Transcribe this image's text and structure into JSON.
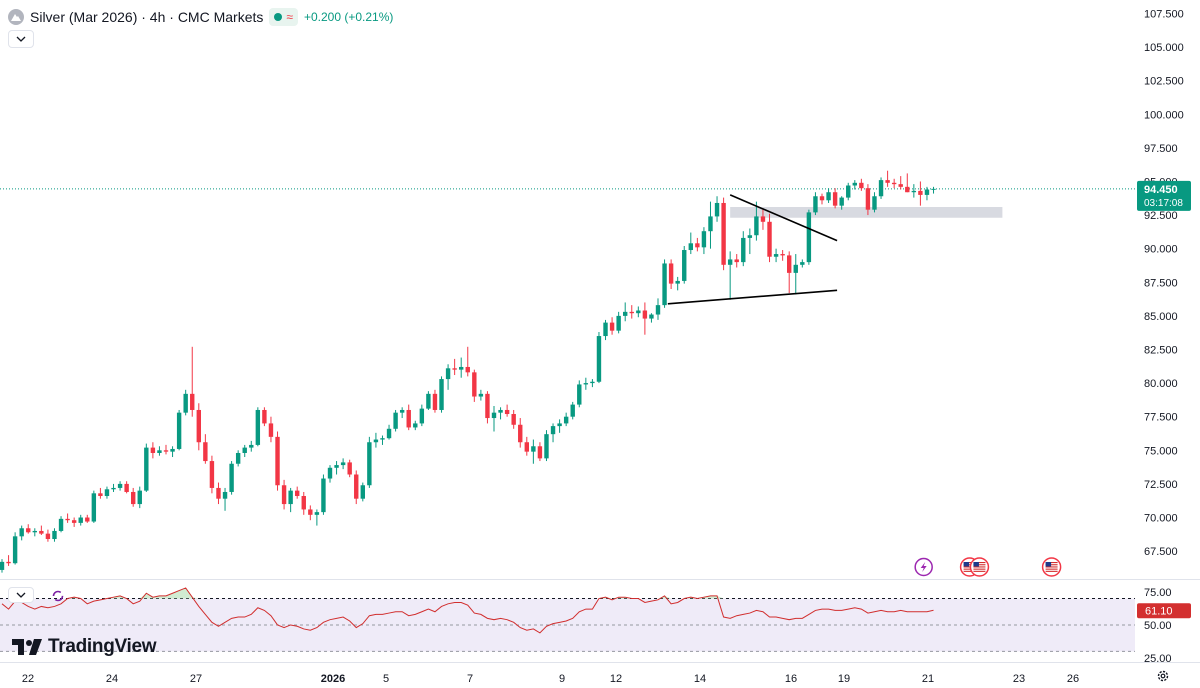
{
  "header": {
    "title": "Silver (Mar 2026) · 4h · CMC Markets",
    "change_text": "+0.200 (+0.21%)",
    "wave_glyph": "≈"
  },
  "brand": {
    "name": "TradingView"
  },
  "price_tag": {
    "price": "94.450",
    "countdown": "03:17:08"
  },
  "rsi_tag": {
    "value": "61.10"
  },
  "colors": {
    "up": "#089981",
    "down": "#f23645",
    "rsi_line": "#d12e2e",
    "rsi_band": "#e9e4f5",
    "zone": "#d1d4dc",
    "accent_purple": "#9c27b0"
  },
  "chart_data": {
    "type": "candlestick",
    "title": "Silver (Mar 2026) · 4h · CMC Markets",
    "ylim": [
      65.5,
      108.5
    ],
    "y_ticks": [
      "107.500",
      "105.000",
      "102.500",
      "100.000",
      "97.500",
      "95.000",
      "92.500",
      "90.000",
      "87.500",
      "85.000",
      "82.500",
      "80.000",
      "77.500",
      "75.000",
      "72.500",
      "70.000",
      "67.500"
    ],
    "x_ticks": [
      "22",
      "24",
      "27",
      "2026",
      "5",
      "7",
      "9",
      "12",
      "14",
      "16",
      "19",
      "21",
      "23",
      "26"
    ],
    "candles": [
      [
        66.1,
        66.9,
        65.9,
        66.7
      ],
      [
        66.7,
        67.2,
        66.4,
        66.6
      ],
      [
        66.6,
        68.9,
        66.5,
        68.6
      ],
      [
        68.6,
        69.4,
        68.3,
        69.2
      ],
      [
        69.2,
        69.5,
        68.8,
        68.9
      ],
      [
        68.9,
        69.2,
        68.6,
        69.0
      ],
      [
        69.0,
        69.4,
        68.7,
        68.8
      ],
      [
        68.8,
        69.1,
        68.2,
        68.4
      ],
      [
        68.4,
        69.2,
        68.2,
        69.0
      ],
      [
        69.0,
        70.1,
        68.9,
        69.9
      ],
      [
        69.9,
        70.3,
        69.6,
        69.8
      ],
      [
        69.8,
        70.0,
        69.3,
        69.6
      ],
      [
        69.6,
        70.2,
        69.4,
        70.0
      ],
      [
        70.0,
        70.2,
        69.6,
        69.7
      ],
      [
        69.7,
        72.0,
        69.6,
        71.8
      ],
      [
        71.8,
        72.2,
        71.4,
        71.6
      ],
      [
        71.6,
        72.3,
        71.4,
        72.1
      ],
      [
        72.1,
        72.5,
        71.9,
        72.2
      ],
      [
        72.2,
        72.7,
        72.0,
        72.5
      ],
      [
        72.5,
        72.7,
        71.8,
        71.9
      ],
      [
        71.9,
        72.2,
        70.8,
        71.0
      ],
      [
        71.0,
        72.3,
        70.7,
        72.0
      ],
      [
        72.0,
        75.5,
        71.9,
        75.2
      ],
      [
        75.2,
        75.6,
        74.4,
        74.8
      ],
      [
        74.8,
        75.3,
        74.6,
        75.0
      ],
      [
        75.0,
        75.4,
        74.7,
        74.9
      ],
      [
        74.9,
        75.3,
        74.5,
        75.1
      ],
      [
        75.1,
        78.0,
        75.0,
        77.8
      ],
      [
        77.8,
        79.5,
        77.6,
        79.2
      ],
      [
        79.2,
        82.7,
        77.5,
        78.0
      ],
      [
        78.0,
        78.5,
        75.0,
        75.6
      ],
      [
        75.6,
        76.2,
        74.0,
        74.2
      ],
      [
        74.2,
        74.6,
        71.8,
        72.2
      ],
      [
        72.2,
        72.6,
        71.0,
        71.4
      ],
      [
        71.4,
        72.2,
        70.5,
        71.9
      ],
      [
        71.9,
        74.2,
        71.7,
        74.0
      ],
      [
        74.0,
        75.0,
        73.8,
        74.8
      ],
      [
        74.8,
        75.4,
        74.5,
        75.2
      ],
      [
        75.2,
        75.7,
        74.9,
        75.4
      ],
      [
        75.4,
        78.2,
        75.3,
        78.0
      ],
      [
        78.0,
        78.2,
        76.8,
        77.0
      ],
      [
        77.0,
        77.5,
        75.6,
        76.0
      ],
      [
        76.0,
        76.4,
        72.0,
        72.4
      ],
      [
        72.4,
        72.8,
        70.6,
        71.0
      ],
      [
        71.0,
        72.2,
        70.4,
        72.0
      ],
      [
        72.0,
        72.3,
        71.4,
        71.6
      ],
      [
        71.6,
        71.9,
        70.2,
        70.6
      ],
      [
        70.6,
        70.9,
        69.8,
        70.2
      ],
      [
        70.2,
        70.6,
        69.4,
        70.4
      ],
      [
        70.4,
        73.2,
        70.2,
        72.9
      ],
      [
        72.9,
        73.9,
        72.6,
        73.7
      ],
      [
        73.7,
        74.2,
        73.2,
        73.9
      ],
      [
        73.9,
        74.4,
        73.6,
        74.1
      ],
      [
        74.1,
        74.3,
        73.0,
        73.2
      ],
      [
        73.2,
        73.5,
        71.0,
        71.4
      ],
      [
        71.4,
        72.6,
        71.2,
        72.4
      ],
      [
        72.4,
        76.0,
        72.2,
        75.6
      ],
      [
        75.6,
        76.3,
        75.2,
        75.8
      ],
      [
        75.8,
        76.1,
        75.4,
        75.9
      ],
      [
        75.9,
        76.9,
        75.8,
        76.6
      ],
      [
        76.6,
        78.0,
        76.4,
        77.8
      ],
      [
        77.8,
        78.2,
        77.4,
        78.0
      ],
      [
        78.0,
        78.4,
        76.5,
        76.7
      ],
      [
        76.7,
        77.2,
        76.5,
        77.0
      ],
      [
        77.0,
        78.4,
        76.8,
        78.1
      ],
      [
        78.1,
        79.4,
        78.0,
        79.2
      ],
      [
        79.2,
        79.5,
        77.8,
        78.0
      ],
      [
        78.0,
        80.5,
        77.8,
        80.3
      ],
      [
        80.3,
        81.4,
        79.5,
        81.1
      ],
      [
        81.1,
        81.8,
        80.6,
        81.0
      ],
      [
        81.0,
        81.9,
        80.4,
        81.2
      ],
      [
        81.2,
        82.7,
        80.5,
        80.8
      ],
      [
        80.8,
        81.0,
        78.6,
        79.0
      ],
      [
        79.0,
        79.5,
        78.7,
        79.2
      ],
      [
        79.2,
        79.4,
        77.0,
        77.4
      ],
      [
        77.4,
        78.3,
        76.4,
        77.8
      ],
      [
        77.8,
        78.2,
        77.3,
        78.0
      ],
      [
        78.0,
        78.4,
        77.5,
        77.7
      ],
      [
        77.7,
        78.0,
        76.6,
        76.9
      ],
      [
        76.9,
        77.4,
        75.2,
        75.6
      ],
      [
        75.6,
        76.0,
        74.6,
        74.9
      ],
      [
        74.9,
        75.8,
        74.0,
        75.3
      ],
      [
        75.3,
        75.6,
        74.2,
        74.4
      ],
      [
        74.4,
        76.5,
        74.2,
        76.2
      ],
      [
        76.2,
        77.0,
        75.6,
        76.8
      ],
      [
        76.8,
        77.3,
        76.3,
        77.0
      ],
      [
        77.0,
        77.8,
        76.8,
        77.5
      ],
      [
        77.5,
        78.6,
        77.3,
        78.4
      ],
      [
        78.4,
        80.2,
        78.2,
        79.9
      ],
      [
        79.9,
        80.4,
        79.5,
        80.0
      ],
      [
        80.0,
        80.3,
        79.7,
        80.1
      ],
      [
        80.1,
        83.8,
        80.0,
        83.5
      ],
      [
        83.5,
        84.7,
        83.2,
        84.5
      ],
      [
        84.5,
        84.9,
        83.6,
        83.9
      ],
      [
        83.9,
        85.3,
        83.7,
        85.0
      ],
      [
        85.0,
        86.0,
        84.6,
        85.3
      ],
      [
        85.3,
        85.8,
        84.8,
        85.2
      ],
      [
        85.2,
        85.7,
        84.9,
        85.4
      ],
      [
        85.4,
        86.0,
        83.6,
        84.8
      ],
      [
        84.8,
        85.2,
        84.5,
        85.1
      ],
      [
        85.1,
        86.3,
        84.7,
        85.8
      ],
      [
        85.8,
        89.2,
        85.6,
        88.9
      ],
      [
        88.9,
        89.2,
        87.0,
        87.4
      ],
      [
        87.4,
        87.9,
        86.9,
        87.6
      ],
      [
        87.6,
        90.2,
        87.4,
        89.9
      ],
      [
        89.9,
        91.2,
        89.6,
        90.4
      ],
      [
        90.4,
        90.8,
        89.8,
        90.1
      ],
      [
        90.1,
        91.6,
        89.6,
        91.3
      ],
      [
        91.3,
        93.5,
        90.0,
        92.4
      ],
      [
        92.4,
        93.9,
        92.0,
        93.4
      ],
      [
        93.4,
        93.8,
        88.4,
        88.8
      ],
      [
        88.8,
        89.8,
        86.2,
        89.2
      ],
      [
        89.2,
        89.6,
        88.6,
        89.0
      ],
      [
        89.0,
        91.3,
        88.7,
        90.8
      ],
      [
        90.8,
        91.5,
        89.6,
        91.0
      ],
      [
        91.0,
        93.5,
        90.6,
        92.4
      ],
      [
        92.4,
        92.9,
        91.4,
        92.0
      ],
      [
        92.0,
        92.6,
        89.0,
        89.4
      ],
      [
        89.4,
        90.0,
        89.0,
        89.6
      ],
      [
        89.6,
        89.9,
        89.1,
        89.5
      ],
      [
        89.5,
        89.8,
        86.7,
        88.2
      ],
      [
        88.2,
        89.6,
        86.6,
        88.8
      ],
      [
        88.8,
        89.2,
        88.6,
        89.0
      ],
      [
        89.0,
        92.9,
        88.8,
        92.7
      ],
      [
        92.7,
        94.2,
        92.5,
        93.9
      ],
      [
        93.9,
        94.1,
        93.3,
        93.6
      ],
      [
        93.6,
        94.5,
        93.4,
        94.2
      ],
      [
        94.2,
        94.5,
        93.0,
        93.2
      ],
      [
        93.2,
        93.9,
        92.9,
        93.8
      ],
      [
        93.8,
        94.9,
        93.6,
        94.7
      ],
      [
        94.7,
        95.1,
        94.4,
        94.9
      ],
      [
        94.9,
        95.2,
        94.3,
        94.5
      ],
      [
        94.5,
        94.8,
        92.5,
        92.9
      ],
      [
        92.9,
        94.2,
        92.7,
        93.9
      ],
      [
        93.9,
        95.3,
        93.7,
        95.1
      ],
      [
        95.1,
        95.8,
        94.6,
        94.9
      ],
      [
        94.9,
        95.2,
        94.5,
        94.8
      ],
      [
        94.8,
        95.4,
        94.4,
        94.6
      ],
      [
        94.6,
        95.6,
        94.2,
        94.2
      ],
      [
        94.2,
        94.8,
        93.8,
        94.3
      ],
      [
        94.3,
        95.0,
        93.2,
        94.0
      ],
      [
        94.0,
        94.6,
        93.6,
        94.4
      ],
      [
        94.4,
        94.6,
        94.1,
        94.45
      ]
    ],
    "zones": [
      {
        "from": 92.3,
        "to": 93.1,
        "label": "resistance-zone"
      }
    ],
    "trendlines": [
      {
        "name": "upper-trendline",
        "from": {
          "candle": 111,
          "price": 94.0
        },
        "to": {
          "candle": 127.3,
          "price": 90.6
        }
      },
      {
        "name": "lower-trendline",
        "from": {
          "candle": 101.5,
          "price": 85.9
        },
        "to": {
          "candle": 127.3,
          "price": 86.9
        }
      }
    ],
    "last_price_line": 94.45,
    "events": [
      {
        "name": "lightning-event-icon",
        "candle": 140.5
      },
      {
        "name": "us-flag-event-icon",
        "candle": 147.5
      },
      {
        "name": "us-flag-event-icon-2",
        "candle": 149
      },
      {
        "name": "us-flag-event-icon-3",
        "candle": 160
      }
    ],
    "rsi": {
      "ylim": [
        22,
        84
      ],
      "upper": 70,
      "mid": 50,
      "lower": 30,
      "ticks": [
        "75.00",
        "50.00",
        "25.00"
      ],
      "values": [
        66,
        62,
        68,
        67,
        64,
        62,
        64,
        63,
        64,
        66,
        70,
        71,
        70,
        66,
        68,
        69,
        70,
        71,
        72,
        70,
        66,
        68,
        74,
        71,
        72,
        72,
        74,
        76,
        78,
        71,
        64,
        58,
        52,
        49,
        52,
        55,
        56,
        56,
        58,
        63,
        61,
        57,
        50,
        48,
        50,
        49,
        47,
        46,
        48,
        52,
        54,
        55,
        56,
        53,
        48,
        51,
        57,
        58,
        58,
        59,
        60,
        60,
        57,
        58,
        60,
        62,
        60,
        64,
        66,
        67,
        67,
        65,
        59,
        58,
        55,
        54,
        55,
        54,
        52,
        48,
        46,
        47,
        44,
        49,
        51,
        52,
        53,
        55,
        60,
        62,
        62,
        70,
        71,
        69,
        71,
        71,
        70,
        70,
        67,
        68,
        69,
        72,
        66,
        67,
        70,
        71,
        70,
        71,
        72,
        72,
        56,
        55,
        57,
        58,
        59,
        61,
        60,
        56,
        56,
        55,
        54,
        55,
        55,
        58,
        61,
        62,
        62,
        61,
        61,
        62,
        63,
        62,
        59,
        60,
        61,
        60,
        60,
        61,
        60,
        60,
        60,
        60,
        61.1
      ]
    },
    "legend": "top-left"
  }
}
